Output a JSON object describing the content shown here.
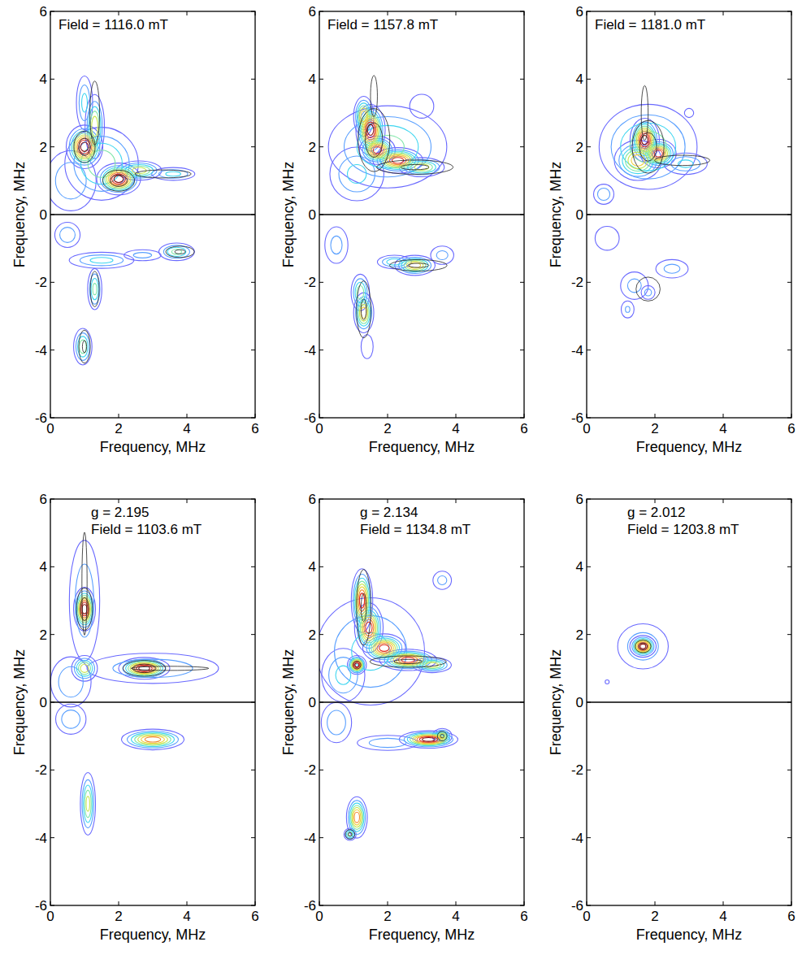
{
  "chart_data": [
    {
      "type": "contour",
      "annotations": [
        "Field = 1116.0 mT"
      ],
      "x_label": "Frequency, MHz",
      "y_label": "Frequency, MHz",
      "xlim": [
        0,
        6
      ],
      "ylim": [
        -6,
        6
      ],
      "xticks": [
        0,
        2,
        4,
        6
      ],
      "yticks": [
        -6,
        -4,
        -2,
        0,
        2,
        4,
        6
      ],
      "levels": [
        0.1,
        0.2,
        0.3,
        0.4,
        0.5,
        0.6,
        0.7,
        0.8,
        0.9
      ],
      "colors": [
        "#6a6aff",
        "#5aa0ff",
        "#3fd6f0",
        "#7fe6a8",
        "#c8e650",
        "#f0d040",
        "#f08a30",
        "#e03020",
        "#8a1010"
      ],
      "peaks": [
        {
          "x": 1.0,
          "y": 2.0,
          "sx": 0.25,
          "sy": 0.3,
          "amp": 1.0
        },
        {
          "x": 2.0,
          "y": 1.05,
          "sx": 0.3,
          "sy": 0.22,
          "amp": 1.0
        },
        {
          "x": 1.3,
          "y": 2.6,
          "sx": 0.15,
          "sy": 0.5,
          "amp": 0.6
        },
        {
          "x": 1.0,
          "y": 3.3,
          "sx": 0.15,
          "sy": 0.5,
          "amp": 0.35
        },
        {
          "x": 2.6,
          "y": 1.3,
          "sx": 0.35,
          "sy": 0.15,
          "amp": 0.6
        },
        {
          "x": 3.6,
          "y": 1.2,
          "sx": 0.4,
          "sy": 0.12,
          "amp": 0.35
        },
        {
          "x": 0.6,
          "y": 1.0,
          "sx": 0.5,
          "sy": 0.6,
          "amp": 0.3
        },
        {
          "x": 1.5,
          "y": 1.5,
          "sx": 0.6,
          "sy": 0.6,
          "amp": 0.5
        },
        {
          "x": 0.5,
          "y": -0.6,
          "sx": 0.25,
          "sy": 0.25,
          "amp": 0.3
        },
        {
          "x": 1.5,
          "y": -1.35,
          "sx": 0.6,
          "sy": 0.15,
          "amp": 0.35
        },
        {
          "x": 3.7,
          "y": -1.1,
          "sx": 0.3,
          "sy": 0.15,
          "amp": 0.45
        },
        {
          "x": 1.3,
          "y": -2.2,
          "sx": 0.12,
          "sy": 0.35,
          "amp": 0.45
        },
        {
          "x": 0.95,
          "y": -3.9,
          "sx": 0.15,
          "sy": 0.3,
          "amp": 0.5
        },
        {
          "x": 2.7,
          "y": -1.2,
          "sx": 0.4,
          "sy": 0.12,
          "amp": 0.25
        }
      ],
      "sim_peaks": [
        {
          "x": 1.0,
          "y": 2.0,
          "sx": 0.2,
          "sy": 0.3,
          "amp": 1
        },
        {
          "x": 2.0,
          "y": 1.0,
          "sx": 0.3,
          "sy": 0.2,
          "amp": 1
        },
        {
          "x": 1.3,
          "y": 3.0,
          "sx": 0.12,
          "sy": 0.8,
          "amp": 0.6
        },
        {
          "x": 3.3,
          "y": 1.2,
          "sx": 0.7,
          "sy": 0.1,
          "amp": 0.6
        },
        {
          "x": 3.8,
          "y": -1.1,
          "sx": 0.3,
          "sy": 0.12,
          "amp": 0.8
        },
        {
          "x": 1.0,
          "y": -3.9,
          "sx": 0.12,
          "sy": 0.35,
          "amp": 0.8
        },
        {
          "x": 1.3,
          "y": -2.2,
          "sx": 0.1,
          "sy": 0.4,
          "amp": 0.7
        }
      ]
    },
    {
      "type": "contour",
      "annotations": [
        "Field = 1157.8 mT"
      ],
      "x_label": "Frequency, MHz",
      "y_label": "Frequency, MHz",
      "xlim": [
        0,
        6
      ],
      "ylim": [
        -6,
        6
      ],
      "xticks": [
        0,
        2,
        4,
        6
      ],
      "yticks": [
        -6,
        -4,
        -2,
        0,
        2,
        4,
        6
      ],
      "levels": [
        0.1,
        0.2,
        0.3,
        0.4,
        0.5,
        0.6,
        0.7,
        0.8,
        0.9
      ],
      "colors": [
        "#6a6aff",
        "#5aa0ff",
        "#3fd6f0",
        "#7fe6a8",
        "#c8e650",
        "#f0d040",
        "#f08a30",
        "#e03020",
        "#8a1010"
      ],
      "peaks": [
        {
          "x": 1.5,
          "y": 2.5,
          "sx": 0.2,
          "sy": 0.35,
          "amp": 1.0
        },
        {
          "x": 1.3,
          "y": 2.9,
          "sx": 0.15,
          "sy": 0.3,
          "amp": 0.7
        },
        {
          "x": 1.7,
          "y": 1.9,
          "sx": 0.25,
          "sy": 0.2,
          "amp": 0.9
        },
        {
          "x": 2.3,
          "y": 1.6,
          "sx": 0.35,
          "sy": 0.18,
          "amp": 0.9
        },
        {
          "x": 3.0,
          "y": 1.4,
          "sx": 0.35,
          "sy": 0.15,
          "amp": 0.6
        },
        {
          "x": 1.1,
          "y": 1.2,
          "sx": 0.5,
          "sy": 0.5,
          "amp": 0.35
        },
        {
          "x": 2.0,
          "y": 2.0,
          "sx": 1.0,
          "sy": 0.7,
          "amp": 0.45
        },
        {
          "x": 3.0,
          "y": 3.2,
          "sx": 0.3,
          "sy": 0.3,
          "amp": 0.2
        },
        {
          "x": 1.3,
          "y": -2.9,
          "sx": 0.15,
          "sy": 0.3,
          "amp": 0.7
        },
        {
          "x": 1.2,
          "y": -2.3,
          "sx": 0.15,
          "sy": 0.3,
          "amp": 0.5
        },
        {
          "x": 2.8,
          "y": -1.5,
          "sx": 0.3,
          "sy": 0.15,
          "amp": 0.7
        },
        {
          "x": 2.2,
          "y": -1.4,
          "sx": 0.3,
          "sy": 0.12,
          "amp": 0.4
        },
        {
          "x": 0.5,
          "y": -0.9,
          "sx": 0.25,
          "sy": 0.4,
          "amp": 0.25
        },
        {
          "x": 3.6,
          "y": -1.2,
          "sx": 0.25,
          "sy": 0.2,
          "amp": 0.25
        },
        {
          "x": 1.4,
          "y": -3.9,
          "sx": 0.15,
          "sy": 0.3,
          "amp": 0.2
        }
      ],
      "sim_peaks": [
        {
          "x": 1.6,
          "y": 2.2,
          "sx": 0.3,
          "sy": 0.6,
          "amp": 1
        },
        {
          "x": 2.8,
          "y": 1.4,
          "sx": 0.8,
          "sy": 0.15,
          "amp": 0.8
        },
        {
          "x": 1.6,
          "y": 3.5,
          "sx": 0.1,
          "sy": 0.6,
          "amp": 0.5
        },
        {
          "x": 1.3,
          "y": -2.8,
          "sx": 0.15,
          "sy": 0.6,
          "amp": 0.8
        },
        {
          "x": 2.9,
          "y": -1.5,
          "sx": 0.6,
          "sy": 0.12,
          "amp": 0.8
        }
      ]
    },
    {
      "type": "contour",
      "annotations": [
        "Field = 1181.0 mT"
      ],
      "x_label": "Frequency, MHz",
      "y_label": "Frequency, MHz",
      "xlim": [
        0,
        6
      ],
      "ylim": [
        -6,
        6
      ],
      "xticks": [
        0,
        2,
        4,
        6
      ],
      "yticks": [
        -6,
        -4,
        -2,
        0,
        2,
        4,
        6
      ],
      "levels": [
        0.1,
        0.2,
        0.3,
        0.4,
        0.5,
        0.6,
        0.7,
        0.8,
        0.9
      ],
      "colors": [
        "#6a6aff",
        "#5aa0ff",
        "#3fd6f0",
        "#7fe6a8",
        "#c8e650",
        "#f0d040",
        "#f08a30",
        "#e03020",
        "#8a1010"
      ],
      "peaks": [
        {
          "x": 1.7,
          "y": 2.2,
          "sx": 0.2,
          "sy": 0.3,
          "amp": 1.0
        },
        {
          "x": 2.1,
          "y": 1.8,
          "sx": 0.25,
          "sy": 0.2,
          "amp": 0.9
        },
        {
          "x": 1.5,
          "y": 1.6,
          "sx": 0.35,
          "sy": 0.3,
          "amp": 0.7
        },
        {
          "x": 1.8,
          "y": 2.0,
          "sx": 0.8,
          "sy": 0.7,
          "amp": 0.5
        },
        {
          "x": 2.9,
          "y": 1.5,
          "sx": 0.4,
          "sy": 0.2,
          "amp": 0.35
        },
        {
          "x": 0.5,
          "y": 0.6,
          "sx": 0.2,
          "sy": 0.2,
          "amp": 0.3
        },
        {
          "x": 3.0,
          "y": 3.0,
          "sx": 0.15,
          "sy": 0.15,
          "amp": 0.15
        },
        {
          "x": 1.4,
          "y": -2.1,
          "sx": 0.3,
          "sy": 0.3,
          "amp": 0.25
        },
        {
          "x": 2.5,
          "y": -1.6,
          "sx": 0.35,
          "sy": 0.2,
          "amp": 0.25
        },
        {
          "x": 0.6,
          "y": -0.7,
          "sx": 0.3,
          "sy": 0.3,
          "amp": 0.2
        },
        {
          "x": 1.2,
          "y": -2.8,
          "sx": 0.15,
          "sy": 0.2,
          "amp": 0.22
        },
        {
          "x": 1.8,
          "y": -2.3,
          "sx": 0.15,
          "sy": 0.15,
          "amp": 0.25
        }
      ],
      "sim_peaks": [
        {
          "x": 1.8,
          "y": 2.0,
          "sx": 0.3,
          "sy": 0.5,
          "amp": 1
        },
        {
          "x": 1.7,
          "y": 3.0,
          "sx": 0.1,
          "sy": 0.8,
          "amp": 0.5
        },
        {
          "x": 2.8,
          "y": 1.6,
          "sx": 0.8,
          "sy": 0.15,
          "amp": 0.5
        },
        {
          "x": 1.8,
          "y": -2.2,
          "sx": 0.3,
          "sy": 0.3,
          "amp": 0.6
        }
      ]
    },
    {
      "type": "contour",
      "annotations": [
        "g = 2.195",
        "Field = 1103.6 mT"
      ],
      "x_label": "Frequency, MHz",
      "y_label": "Frequency, MHz",
      "xlim": [
        0,
        6
      ],
      "ylim": [
        -6,
        6
      ],
      "xticks": [
        0,
        2,
        4,
        6
      ],
      "yticks": [
        -6,
        -4,
        -2,
        0,
        2,
        4,
        6
      ],
      "levels": [
        0.1,
        0.2,
        0.3,
        0.4,
        0.5,
        0.6,
        0.7,
        0.8,
        0.9
      ],
      "colors": [
        "#6a6aff",
        "#5aa0ff",
        "#3fd6f0",
        "#7fe6a8",
        "#c8e650",
        "#f0d040",
        "#f08a30",
        "#e03020",
        "#8a1010"
      ],
      "peaks": [
        {
          "x": 1.0,
          "y": 2.75,
          "sx": 0.15,
          "sy": 0.3,
          "amp": 1.0
        },
        {
          "x": 2.75,
          "y": 1.0,
          "sx": 0.35,
          "sy": 0.15,
          "amp": 1.0
        },
        {
          "x": 1.0,
          "y": 1.0,
          "sx": 0.2,
          "sy": 0.2,
          "amp": 0.6
        },
        {
          "x": 0.6,
          "y": 0.6,
          "sx": 0.4,
          "sy": 0.5,
          "amp": 0.3
        },
        {
          "x": 1.0,
          "y": 3.0,
          "sx": 0.3,
          "sy": 1.2,
          "amp": 0.3
        },
        {
          "x": 3.0,
          "y": 1.0,
          "sx": 1.3,
          "sy": 0.3,
          "amp": 0.3
        },
        {
          "x": 3.0,
          "y": -1.1,
          "sx": 0.45,
          "sy": 0.15,
          "amp": 0.8
        },
        {
          "x": 1.1,
          "y": -3.0,
          "sx": 0.12,
          "sy": 0.5,
          "amp": 0.55
        },
        {
          "x": 0.6,
          "y": -0.5,
          "sx": 0.3,
          "sy": 0.3,
          "amp": 0.3
        }
      ],
      "sim_peaks": [
        {
          "x": 1.0,
          "y": 2.75,
          "sx": 0.15,
          "sy": 0.4,
          "amp": 1
        },
        {
          "x": 2.75,
          "y": 1.0,
          "sx": 0.4,
          "sy": 0.15,
          "amp": 1
        },
        {
          "x": 1.0,
          "y": 3.5,
          "sx": 0.1,
          "sy": 2.0,
          "amp": 0.4
        },
        {
          "x": 3.5,
          "y": 1.0,
          "sx": 1.5,
          "sy": 0.08,
          "amp": 0.4
        }
      ]
    },
    {
      "type": "contour",
      "annotations": [
        "g = 2.134",
        "Field = 1134.8 mT"
      ],
      "x_label": "Frequency, MHz",
      "y_label": "Frequency, MHz",
      "xlim": [
        0,
        6
      ],
      "ylim": [
        -6,
        6
      ],
      "xticks": [
        0,
        2,
        4,
        6
      ],
      "yticks": [
        -6,
        -4,
        -2,
        0,
        2,
        4,
        6
      ],
      "levels": [
        0.1,
        0.2,
        0.3,
        0.4,
        0.5,
        0.6,
        0.7,
        0.8,
        0.9
      ],
      "colors": [
        "#6a6aff",
        "#5aa0ff",
        "#3fd6f0",
        "#7fe6a8",
        "#c8e650",
        "#f0d040",
        "#f08a30",
        "#e03020",
        "#8a1010"
      ],
      "peaks": [
        {
          "x": 1.25,
          "y": 3.0,
          "sx": 0.15,
          "sy": 0.45,
          "amp": 0.9
        },
        {
          "x": 1.45,
          "y": 2.2,
          "sx": 0.2,
          "sy": 0.35,
          "amp": 0.9
        },
        {
          "x": 1.9,
          "y": 1.6,
          "sx": 0.3,
          "sy": 0.2,
          "amp": 0.9
        },
        {
          "x": 2.6,
          "y": 1.25,
          "sx": 0.4,
          "sy": 0.15,
          "amp": 0.9
        },
        {
          "x": 3.3,
          "y": 1.1,
          "sx": 0.3,
          "sy": 0.12,
          "amp": 0.6
        },
        {
          "x": 1.1,
          "y": 1.1,
          "sx": 0.13,
          "sy": 0.13,
          "amp": 1.0
        },
        {
          "x": 0.7,
          "y": 0.8,
          "sx": 0.4,
          "sy": 0.5,
          "amp": 0.35
        },
        {
          "x": 3.6,
          "y": 3.6,
          "sx": 0.2,
          "sy": 0.2,
          "amp": 0.25
        },
        {
          "x": 1.5,
          "y": 1.5,
          "sx": 1.0,
          "sy": 1.0,
          "amp": 0.35
        },
        {
          "x": 3.2,
          "y": -1.1,
          "sx": 0.4,
          "sy": 0.12,
          "amp": 1.0
        },
        {
          "x": 3.6,
          "y": -1.0,
          "sx": 0.15,
          "sy": 0.12,
          "amp": 0.6
        },
        {
          "x": 1.1,
          "y": -3.4,
          "sx": 0.15,
          "sy": 0.3,
          "amp": 0.8
        },
        {
          "x": 0.9,
          "y": -3.9,
          "sx": 0.1,
          "sy": 0.1,
          "amp": 0.5
        },
        {
          "x": 0.5,
          "y": -0.6,
          "sx": 0.3,
          "sy": 0.4,
          "amp": 0.3
        },
        {
          "x": 2.0,
          "y": -1.2,
          "sx": 0.6,
          "sy": 0.15,
          "amp": 0.3
        }
      ],
      "sim_peaks": [
        {
          "x": 1.3,
          "y": 2.8,
          "sx": 0.15,
          "sy": 0.8,
          "amp": 0.8
        },
        {
          "x": 2.6,
          "y": 1.2,
          "sx": 0.8,
          "sy": 0.12,
          "amp": 0.8
        },
        {
          "x": 1.1,
          "y": 1.1,
          "sx": 0.1,
          "sy": 0.1,
          "amp": 0.6
        },
        {
          "x": 3.6,
          "y": -1.0,
          "sx": 0.1,
          "sy": 0.1,
          "amp": 0.8
        },
        {
          "x": 0.9,
          "y": -3.9,
          "sx": 0.1,
          "sy": 0.1,
          "amp": 0.8
        }
      ]
    },
    {
      "type": "contour",
      "annotations": [
        "g = 2.012",
        "Field = 1203.8 mT"
      ],
      "x_label": "Frequency, MHz",
      "y_label": "Frequency, MHz",
      "xlim": [
        0,
        6
      ],
      "ylim": [
        -6,
        6
      ],
      "xticks": [
        0,
        2,
        4,
        6
      ],
      "yticks": [
        -6,
        -4,
        -2,
        0,
        2,
        4,
        6
      ],
      "levels": [
        0.1,
        0.2,
        0.3,
        0.4,
        0.5,
        0.6,
        0.7,
        0.8,
        0.9
      ],
      "colors": [
        "#6a6aff",
        "#5aa0ff",
        "#3fd6f0",
        "#7fe6a8",
        "#c8e650",
        "#f0d040",
        "#f08a30",
        "#e03020",
        "#8a1010"
      ],
      "peaks": [
        {
          "x": 1.65,
          "y": 1.65,
          "sx": 0.18,
          "sy": 0.15,
          "amp": 1.0
        },
        {
          "x": 1.65,
          "y": 1.65,
          "sx": 0.5,
          "sy": 0.45,
          "amp": 0.3
        },
        {
          "x": 0.6,
          "y": 0.6,
          "sx": 0.05,
          "sy": 0.05,
          "amp": 0.2
        }
      ],
      "sim_peaks": [
        {
          "x": 1.65,
          "y": 1.65,
          "sx": 0.15,
          "sy": 0.12,
          "amp": 1
        }
      ]
    }
  ]
}
